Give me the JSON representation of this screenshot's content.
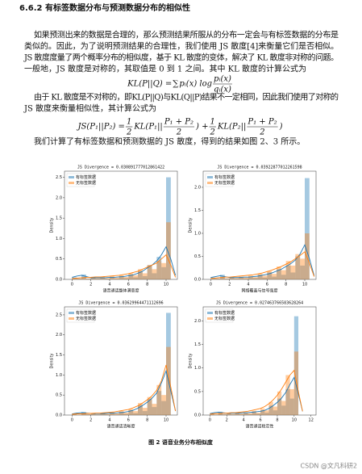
{
  "heading": "6.6.2 有标签数据分布与预测数据分布的相似性",
  "paragraph_1": [
    "如果预测出来的数据是合理的，那么预测结果所服从的分布一定会与有标签数据的分布是",
    "类似的。因此，为了说明预测结果的合理性，我们使用 JS 散度[4]来衡量它们是否相似。",
    "JS 散度度量了两个概率分布的相似度，基于 KL 散度的变体，解决了 KL 散度非对称的问题。",
    "一般地，JS 散度是对称的，其取值是 0 到 1 之间。其中 KL 散度的计算公式为"
  ],
  "formula_1": [
    "KL(P||Q) = ",
    "∑",
    "pᵢ(x) log ",
    {
      "num": "pᵢ(x)",
      "den": "qᵢ(x)"
    }
  ],
  "paragraph_2": [
    "由于 KL 散度是不对称的，即KL(P||Q)与KL(Q||P)结果不一定相同，因此我们使用了对称的",
    "JS 散度来衡量相似性，其计算公式为"
  ],
  "formula_2": [
    "JS(P₁||P₂) = ",
    {
      "num": "1",
      "den": "2"
    },
    "KL(P₁||",
    {
      "num": "P₁ + P₂",
      "den": "2"
    },
    ") + ",
    {
      "num": "1",
      "den": "2"
    },
    "KL(P₂||",
    {
      "num": "P₁ + P₂",
      "den": "2"
    },
    ")"
  ],
  "paragraph_3": [
    "我们计算了有标签数据和预测数据的 JS 散度，得到的结果如图 2、3 所示。"
  ],
  "chart_data": [
    {
      "type": "histogram",
      "title": "JS Divergence = 0.030891777012861422",
      "xlabel": "语音通话整体满意度",
      "ylabel": "Density",
      "legend": "upper left",
      "bins": [
        0,
        0.5,
        1,
        1.5,
        2,
        2.5,
        3,
        3.5,
        4,
        4.5,
        5,
        5.5,
        6,
        6.5,
        7,
        7.5,
        8,
        8.5,
        9,
        9.5,
        10,
        10.5
      ],
      "kde_x": [
        0,
        0.5,
        1,
        1.5,
        2,
        2.5,
        3,
        3.5,
        4,
        4.5,
        5,
        5.5,
        6,
        6.5,
        7,
        7.5,
        8,
        8.5,
        9,
        9.5,
        10,
        10.5,
        11
      ],
      "series": [
        {
          "name": "有标签数据",
          "color": "#1f77b4",
          "values": [
            0.05,
            0.02,
            0.12,
            0.02,
            0.06,
            0.02,
            0.05,
            0.02,
            0.06,
            0.02,
            0.08,
            0.03,
            0.12,
            0.05,
            0.2,
            0.08,
            0.35,
            0.15,
            0.55,
            0.3,
            2.5
          ],
          "kde": [
            0.05,
            0.08,
            0.1,
            0.07,
            0.04,
            0.04,
            0.04,
            0.04,
            0.05,
            0.05,
            0.06,
            0.07,
            0.09,
            0.11,
            0.15,
            0.2,
            0.28,
            0.35,
            0.45,
            0.6,
            0.8,
            0.5,
            0.1
          ]
        },
        {
          "name": "无标签数据",
          "color": "#ff7f0e",
          "values": [
            0.02,
            0.02,
            0.05,
            0.02,
            0.05,
            0.03,
            0.06,
            0.03,
            0.08,
            0.04,
            0.1,
            0.06,
            0.15,
            0.1,
            0.25,
            0.15,
            0.35,
            0.25,
            0.45,
            0.4,
            1.4
          ],
          "kde": [
            0.02,
            0.03,
            0.04,
            0.05,
            0.05,
            0.06,
            0.06,
            0.07,
            0.08,
            0.09,
            0.1,
            0.12,
            0.14,
            0.17,
            0.2,
            0.25,
            0.3,
            0.35,
            0.4,
            0.5,
            0.6,
            0.35,
            0.05
          ]
        }
      ],
      "xlim": [
        -0.8,
        11.2
      ],
      "ylim": [
        0,
        2.65
      ],
      "xticks": [
        0,
        2,
        4,
        6,
        8,
        10
      ],
      "yticks": [
        {
          "value": 0,
          "label": "0.0"
        },
        {
          "value": 0.5,
          "label": "0.5"
        },
        {
          "value": 1,
          "label": "1.0"
        },
        {
          "value": 1.5,
          "label": "1.5"
        },
        {
          "value": 2,
          "label": "2.0"
        },
        {
          "value": 2.5,
          "label": "2.5"
        }
      ]
    },
    {
      "type": "histogram",
      "title": "JS Divergence = 0.03922877012261598",
      "xlabel": "网络覆盖与信号强度",
      "ylabel": "Density",
      "legend": "upper left",
      "bins": [
        0,
        0.5,
        1,
        1.5,
        2,
        2.5,
        3,
        3.5,
        4,
        4.5,
        5,
        5.5,
        6,
        6.5,
        7,
        7.5,
        8,
        8.5,
        9,
        9.5,
        10,
        10.5
      ],
      "kde_x": [
        0,
        0.5,
        1,
        1.5,
        2,
        2.5,
        3,
        3.5,
        4,
        4.5,
        5,
        5.5,
        6,
        6.5,
        7,
        7.5,
        8,
        8.5,
        9,
        9.5,
        10,
        10.5,
        11
      ],
      "series": [
        {
          "name": "有标签数据",
          "color": "#1f77b4",
          "values": [
            0.04,
            0.02,
            0.1,
            0.02,
            0.05,
            0.02,
            0.05,
            0.02,
            0.06,
            0.03,
            0.1,
            0.04,
            0.15,
            0.06,
            0.22,
            0.1,
            0.3,
            0.15,
            0.5,
            0.3,
            2.2
          ],
          "kde": [
            0.04,
            0.06,
            0.08,
            0.06,
            0.04,
            0.04,
            0.04,
            0.05,
            0.05,
            0.06,
            0.07,
            0.09,
            0.11,
            0.14,
            0.18,
            0.22,
            0.28,
            0.34,
            0.42,
            0.55,
            0.75,
            0.45,
            0.08
          ]
        },
        {
          "name": "无标签数据",
          "color": "#ff7f0e",
          "values": [
            0.02,
            0.02,
            0.04,
            0.02,
            0.05,
            0.03,
            0.06,
            0.04,
            0.08,
            0.05,
            0.12,
            0.08,
            0.18,
            0.12,
            0.28,
            0.2,
            0.4,
            0.3,
            0.55,
            0.45,
            1.0
          ],
          "kde": [
            0.02,
            0.03,
            0.04,
            0.05,
            0.05,
            0.06,
            0.07,
            0.08,
            0.09,
            0.1,
            0.12,
            0.14,
            0.17,
            0.2,
            0.24,
            0.28,
            0.33,
            0.38,
            0.45,
            0.52,
            0.6,
            0.35,
            0.06
          ]
        }
      ],
      "xlim": [
        -0.8,
        11.2
      ],
      "ylim": [
        0,
        2.35
      ],
      "xticks": [
        0,
        2,
        4,
        6,
        8,
        10
      ],
      "yticks": [
        {
          "value": 0,
          "label": "0.0"
        },
        {
          "value": 0.5,
          "label": "0.5"
        },
        {
          "value": 1,
          "label": "1.0"
        },
        {
          "value": 1.5,
          "label": "1.5"
        },
        {
          "value": 2,
          "label": "2.0"
        }
      ]
    },
    {
      "type": "histogram",
      "title": "JS Divergence = 0.03629964471112696",
      "xlabel": "语音通话清晰度",
      "ylabel": "Density",
      "legend": "upper left",
      "bins": [
        0,
        0.5,
        1,
        1.5,
        2,
        2.5,
        3,
        3.5,
        4,
        4.5,
        5,
        5.5,
        6,
        6.5,
        7,
        7.5,
        8,
        8.5,
        9,
        9.5,
        10,
        10.5
      ],
      "kde_x": [
        0,
        0.5,
        1,
        1.5,
        2,
        2.5,
        3,
        3.5,
        4,
        4.5,
        5,
        5.5,
        6,
        6.5,
        7,
        7.5,
        8,
        8.5,
        9,
        9.5,
        10,
        10.5,
        11
      ],
      "series": [
        {
          "name": "有标签数据",
          "color": "#1f77b4",
          "values": [
            0.03,
            0.01,
            0.08,
            0.02,
            0.05,
            0.02,
            0.04,
            0.02,
            0.06,
            0.02,
            0.08,
            0.03,
            0.12,
            0.05,
            0.25,
            0.1,
            0.4,
            0.2,
            0.6,
            0.35,
            2.55
          ],
          "kde": [
            0.03,
            0.05,
            0.06,
            0.05,
            0.04,
            0.04,
            0.04,
            0.04,
            0.05,
            0.05,
            0.06,
            0.07,
            0.09,
            0.12,
            0.17,
            0.24,
            0.32,
            0.42,
            0.55,
            0.8,
            1.1,
            0.6,
            0.1
          ]
        },
        {
          "name": "无标签数据",
          "color": "#ff7f0e",
          "values": [
            0.02,
            0.01,
            0.04,
            0.02,
            0.04,
            0.02,
            0.05,
            0.03,
            0.07,
            0.04,
            0.1,
            0.06,
            0.15,
            0.1,
            0.3,
            0.18,
            0.45,
            0.28,
            0.75,
            0.5,
            1.7
          ],
          "kde": [
            0.02,
            0.03,
            0.03,
            0.04,
            0.04,
            0.05,
            0.05,
            0.06,
            0.07,
            0.08,
            0.1,
            0.12,
            0.14,
            0.18,
            0.23,
            0.3,
            0.38,
            0.48,
            0.62,
            0.85,
            1.25,
            0.7,
            0.1
          ]
        }
      ],
      "xlim": [
        -0.8,
        11.2
      ],
      "ylim": [
        0,
        2.7
      ],
      "xticks": [
        0,
        2,
        4,
        6,
        8,
        10
      ],
      "yticks": [
        {
          "value": 0,
          "label": "0.0"
        },
        {
          "value": 0.5,
          "label": "0.5"
        },
        {
          "value": 1,
          "label": "1.0"
        },
        {
          "value": 1.5,
          "label": "1.5"
        },
        {
          "value": 2,
          "label": "2.0"
        },
        {
          "value": 2.5,
          "label": "2.5"
        }
      ]
    },
    {
      "type": "histogram",
      "title": "JS Divergence = 0.027463766583628264",
      "xlabel": "语音通话稳定性",
      "ylabel": "Density",
      "legend": "upper left",
      "bins": [
        0,
        0.5,
        1,
        1.5,
        2,
        2.5,
        3,
        3.5,
        4,
        4.5,
        5,
        5.5,
        6,
        6.5,
        7,
        7.5,
        8,
        8.5,
        9,
        9.5,
        10,
        10.5
      ],
      "kde_x": [
        0,
        0.5,
        1,
        1.5,
        2,
        2.5,
        3,
        3.5,
        4,
        4.5,
        5,
        5.5,
        6,
        6.5,
        7,
        7.5,
        8,
        8.5,
        9,
        9.5,
        10,
        10.5,
        11
      ],
      "series": [
        {
          "name": "有标签数据",
          "color": "#1f77b4",
          "values": [
            0.03,
            0.01,
            0.07,
            0.02,
            0.04,
            0.02,
            0.04,
            0.02,
            0.05,
            0.02,
            0.07,
            0.03,
            0.1,
            0.05,
            0.2,
            0.1,
            0.35,
            0.2,
            0.55,
            0.35,
            2.1
          ],
          "kde": [
            0.03,
            0.05,
            0.06,
            0.05,
            0.04,
            0.04,
            0.04,
            0.04,
            0.05,
            0.05,
            0.06,
            0.07,
            0.08,
            0.1,
            0.14,
            0.2,
            0.27,
            0.36,
            0.48,
            0.65,
            0.8,
            0.45,
            0.08
          ]
        },
        {
          "name": "无标签数据",
          "color": "#ff7f0e",
          "values": [
            0.02,
            0.01,
            0.04,
            0.02,
            0.04,
            0.02,
            0.05,
            0.03,
            0.06,
            0.04,
            0.09,
            0.05,
            0.14,
            0.1,
            0.28,
            0.18,
            0.5,
            0.3,
            0.85,
            0.55,
            1.35
          ],
          "kde": [
            0.02,
            0.03,
            0.03,
            0.04,
            0.04,
            0.05,
            0.05,
            0.06,
            0.07,
            0.08,
            0.1,
            0.12,
            0.14,
            0.18,
            0.24,
            0.32,
            0.42,
            0.55,
            0.7,
            0.85,
            0.95,
            0.5,
            0.08
          ]
        }
      ],
      "xlim": [
        -0.8,
        12.6
      ],
      "ylim": [
        0,
        2.3
      ],
      "xticks": [
        0,
        2,
        4,
        6,
        8,
        10,
        12
      ],
      "yticks": [
        {
          "value": 0,
          "label": "0.0"
        },
        {
          "value": 0.5,
          "label": "0.5"
        },
        {
          "value": 1,
          "label": "1.0"
        },
        {
          "value": 1.5,
          "label": "1.5"
        },
        {
          "value": 2,
          "label": "2.0"
        }
      ]
    }
  ],
  "caption": "图 2 语音业务分布相似度",
  "watermark": "CSDN @文凡科研2"
}
